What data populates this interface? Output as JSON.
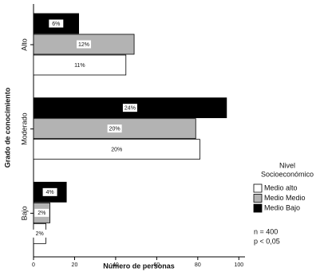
{
  "chart_data": {
    "type": "bar",
    "orientation": "horizontal",
    "x_label": "Número de personas",
    "y_label": "Grado de conocimiento",
    "categories": [
      "Alto",
      "Moderado",
      "Bajo"
    ],
    "series": [
      {
        "name": "Medio Bajo",
        "color": "#000000",
        "values": [
          22,
          94,
          16
        ],
        "value_labels": [
          "6%",
          "24%",
          "4%"
        ]
      },
      {
        "name": "Medio Medio",
        "color": "#b3b3b3",
        "values": [
          49,
          79,
          8
        ],
        "value_labels": [
          "12%",
          "20%",
          "2%"
        ]
      },
      {
        "name": "Medio alto",
        "color": "#ffffff",
        "values": [
          45,
          81,
          6
        ],
        "value_labels": [
          "11%",
          "20%",
          "2%"
        ]
      }
    ],
    "legend_title": [
      "Nivel",
      "Socioeconómico"
    ],
    "legend_order": [
      "Medio alto",
      "Medio Medio",
      "Medio Bajo"
    ],
    "annotations": [
      "n = 400",
      "p < 0,05"
    ],
    "xlim": [
      0,
      103
    ],
    "xticks": [
      0,
      20,
      40,
      60,
      80,
      100
    ],
    "grid": false
  }
}
